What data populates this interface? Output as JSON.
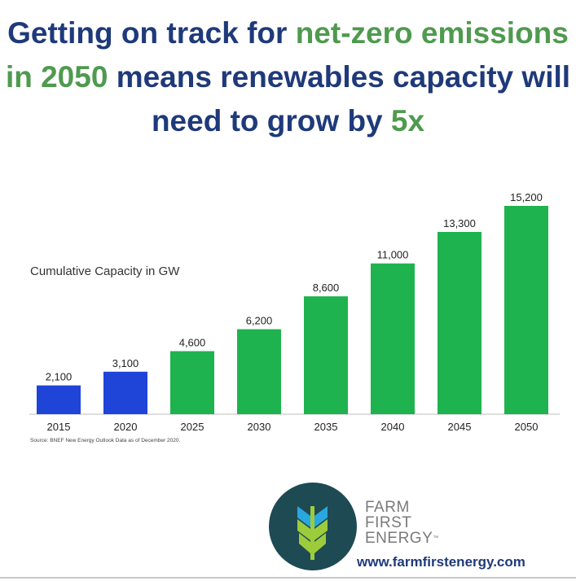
{
  "headline": {
    "p1": "Getting on track for ",
    "p2": "net-zero emissions in 2050",
    "p3": " means renewables capacity will need to grow by ",
    "p4": "5x"
  },
  "chart_data": {
    "type": "bar",
    "title": "Cumulative Capacity in GW",
    "categories": [
      "2015",
      "2020",
      "2025",
      "2030",
      "2035",
      "2040",
      "2045",
      "2050"
    ],
    "values": [
      2100,
      3100,
      4600,
      6200,
      8600,
      11000,
      13300,
      15200
    ],
    "value_labels": [
      "2,100",
      "3,100",
      "4,600",
      "6,200",
      "8,600",
      "11,000",
      "13,300",
      "15,200"
    ],
    "bar_colors": [
      "#1f44d8",
      "#1f44d8",
      "#1eb34e",
      "#1eb34e",
      "#1eb34e",
      "#1eb34e",
      "#1eb34e",
      "#1eb34e"
    ],
    "ylim": [
      0,
      15200
    ],
    "grid": false,
    "xlabel": "",
    "ylabel": ""
  },
  "source": "Source: BNEF New Energy Outlook Data as of December 2020.",
  "brand": {
    "line1": "FARM",
    "line2": "FIRST",
    "line3": "ENERGY",
    "tm": "™",
    "website": "www.farmfirstenergy.com"
  },
  "colors": {
    "headline_blue": "#1f3a7a",
    "headline_green": "#4f9a4f",
    "logo_circle": "#1e4a54"
  }
}
